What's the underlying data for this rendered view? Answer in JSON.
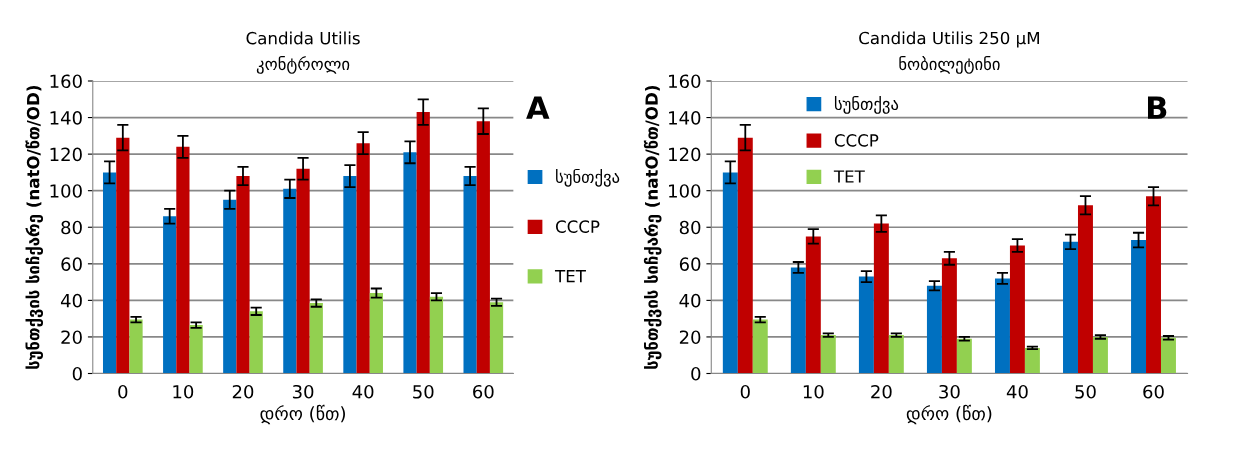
{
  "chart_data": [
    {
      "type": "bar",
      "title": "Candida Utilis",
      "subtitle": "კონტროლი",
      "xlabel": "დრო (წთ)",
      "ylabel": "სუნთქვის სიჩქარე (natO/წთ/OD)",
      "categories": [
        "0",
        "10",
        "20",
        "30",
        "40",
        "50",
        "60"
      ],
      "series": [
        {
          "name": "სუნთქვა",
          "color": "#0070c0",
          "values": [
            110,
            86,
            95,
            101,
            108,
            121,
            108
          ],
          "errors": [
            6,
            4,
            5,
            5,
            6,
            6,
            5
          ]
        },
        {
          "name": "CCCP",
          "color": "#c00000",
          "values": [
            129,
            124,
            108,
            112,
            126,
            143,
            138
          ],
          "errors": [
            7,
            6,
            5,
            6,
            6,
            7,
            7
          ]
        },
        {
          "name": "TET",
          "color": "#92d050",
          "values": [
            29.5,
            26.5,
            34,
            38.5,
            44,
            42,
            39
          ],
          "errors": [
            1.5,
            1.5,
            2,
            2,
            2.5,
            2,
            2
          ]
        }
      ],
      "ylim": [
        0,
        160
      ],
      "yticks": [
        0,
        20,
        40,
        60,
        80,
        100,
        120,
        140,
        160
      ],
      "grid": "y",
      "legend": "right",
      "annotations": [
        "A"
      ]
    },
    {
      "type": "bar",
      "title": "Candida Utilis 250 µM",
      "subtitle": "ნობილეტინი",
      "xlabel": "დრო (წთ)",
      "ylabel": "სუნთქვის სიჩქარე (natO/წთ/OD)",
      "categories": [
        "0",
        "10",
        "20",
        "30",
        "40",
        "50",
        "60"
      ],
      "series": [
        {
          "name": "სუნთქვა",
          "color": "#0070c0",
          "values": [
            110,
            58,
            53,
            48,
            52,
            72,
            73
          ],
          "errors": [
            6,
            3,
            3,
            2.5,
            3,
            4,
            4
          ]
        },
        {
          "name": "CCCP",
          "color": "#c00000",
          "values": [
            129,
            75,
            82,
            63,
            70,
            92,
            97
          ],
          "errors": [
            7,
            4,
            4.5,
            3.5,
            3.5,
            5,
            5
          ]
        },
        {
          "name": "TET",
          "color": "#92d050",
          "values": [
            29.5,
            21,
            21,
            19,
            14,
            20,
            19.5
          ],
          "errors": [
            1.5,
            1,
            1,
            1,
            0.7,
            1,
            1
          ]
        }
      ],
      "ylim": [
        0,
        160
      ],
      "yticks": [
        0,
        20,
        40,
        60,
        80,
        100,
        120,
        140,
        160
      ],
      "grid": "y",
      "legend": "top left",
      "annotations": [
        "B"
      ]
    }
  ]
}
